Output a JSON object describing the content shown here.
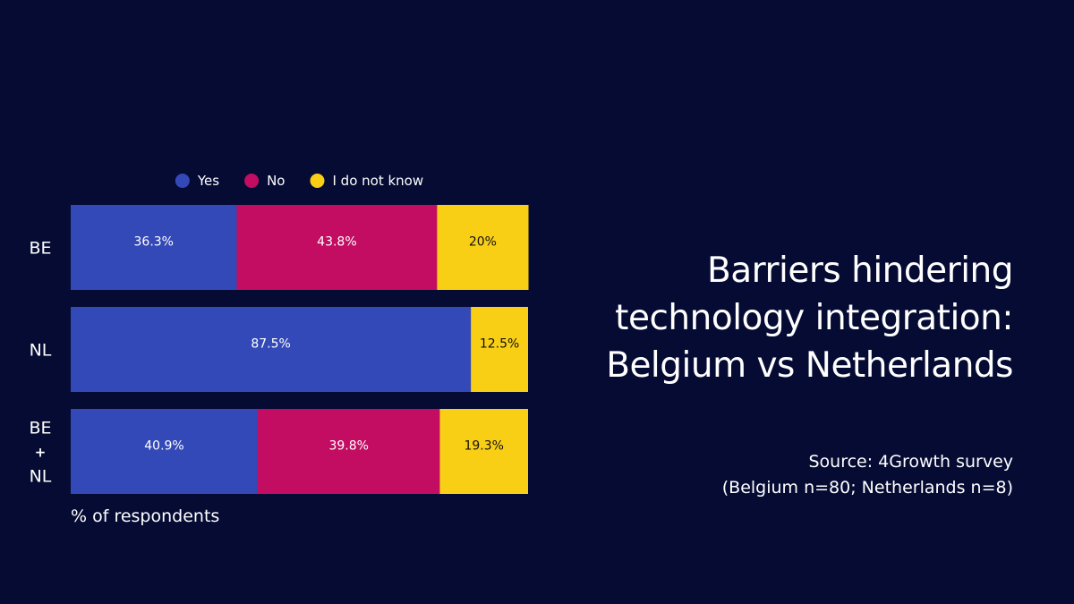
{
  "title_lines": [
    "Barriers hindering",
    "technology integration:",
    "Belgium vs Netherlands"
  ],
  "source_lines": [
    "Source: 4Growth survey",
    "(Belgium n=80; Netherlands n=8)"
  ],
  "chart_data": {
    "type": "bar",
    "orientation": "horizontal",
    "stacked": true,
    "normalized": true,
    "categories": [
      [
        "BE"
      ],
      [
        "NL"
      ],
      [
        "BE",
        "+",
        "NL"
      ]
    ],
    "series": [
      {
        "name": "Yes",
        "color": "#3349b8",
        "values": [
          36.3,
          87.5,
          40.9
        ],
        "labels": [
          "36.3%",
          "87.5%",
          "40.9%"
        ]
      },
      {
        "name": "No",
        "color": "#c20d63",
        "values": [
          43.8,
          0,
          39.8
        ],
        "labels": [
          "43.8%",
          "",
          "39.8%"
        ]
      },
      {
        "name": "I do not know",
        "color": "#f9cf16",
        "values": [
          20,
          12.5,
          19.3
        ],
        "labels": [
          "20%",
          "12.5%",
          "19.3%"
        ]
      }
    ],
    "xlabel": "% of respondents",
    "xlim": [
      0,
      100
    ],
    "legend": "top",
    "grid": false
  }
}
